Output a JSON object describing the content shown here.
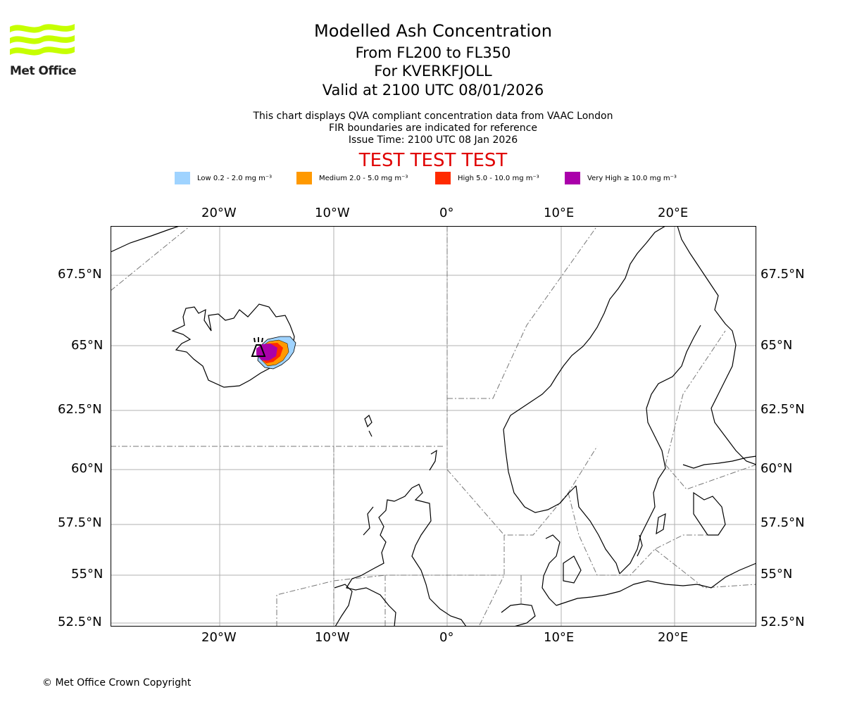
{
  "logo": {
    "text": "Met Office",
    "color": "#c6ff00"
  },
  "titles": {
    "main": "Modelled Ash Concentration",
    "levels": "From FL200 to FL350",
    "volcano": "For KVERKFJOLL",
    "valid": "Valid at 2100 UTC 08/01/2026"
  },
  "notes": {
    "line1": "This chart displays QVA compliant concentration data from VAAC London",
    "line2": "FIR boundaries are indicated for reference",
    "line3": "Issue Time: 2100 UTC 08 Jan 2026"
  },
  "test_banner": "TEST TEST TEST",
  "legend": [
    {
      "label": "Low 0.2 - 2.0 mg m⁻³",
      "color": "#9fd3ff"
    },
    {
      "label": "Medium 2.0 - 5.0 mg m⁻³",
      "color": "#ff9900"
    },
    {
      "label": "High 5.0 - 10.0 mg m⁻³",
      "color": "#ff2a00"
    },
    {
      "label": "Very High ≥ 10.0 mg m⁻³",
      "color": "#aa00aa"
    }
  ],
  "map": {
    "lon_ticks": [
      "20°W",
      "10°W",
      "0°",
      "10°E",
      "20°E"
    ],
    "lat_ticks": [
      "67.5°N",
      "65°N",
      "62.5°N",
      "60°N",
      "57.5°N",
      "55°N",
      "52.5°N"
    ],
    "volcano_location": {
      "lon": -16.7,
      "lat": 64.7
    }
  },
  "copyright": "© Met Office Crown Copyright"
}
